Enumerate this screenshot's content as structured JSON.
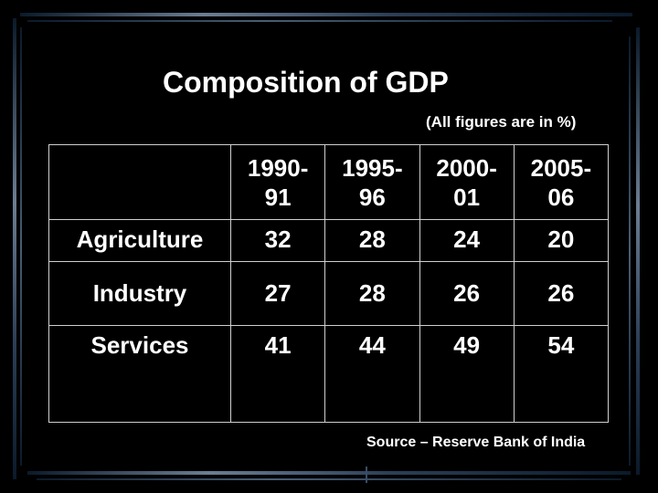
{
  "chart_data": {
    "type": "table",
    "title": "Composition of GDP",
    "subtitle": "(All figures are in %)",
    "columns": [
      {
        "line1": "1990-",
        "line2": "91"
      },
      {
        "line1": "1995-",
        "line2": "96"
      },
      {
        "line1": "2000-",
        "line2": "01"
      },
      {
        "line1": "2005-",
        "line2": "06"
      }
    ],
    "rows": [
      {
        "label": "Agriculture",
        "values": [
          "32",
          "28",
          "24",
          "20"
        ]
      },
      {
        "label": "Industry",
        "values": [
          "27",
          "28",
          "26",
          "26"
        ]
      },
      {
        "label": "Services",
        "values": [
          "41",
          "44",
          "49",
          "54"
        ]
      }
    ],
    "source": "Source – Reserve Bank of India"
  }
}
